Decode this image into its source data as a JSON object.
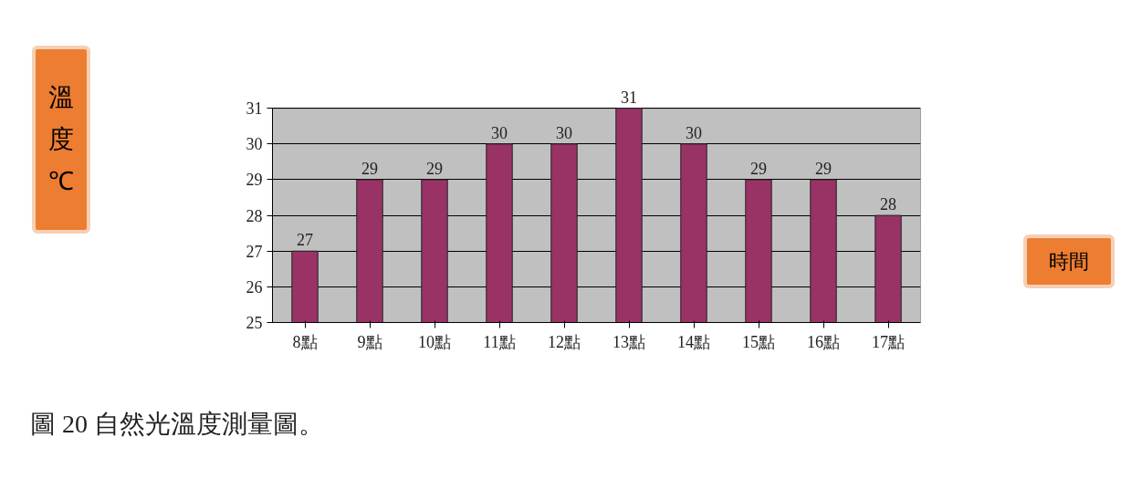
{
  "chart_data": {
    "type": "bar",
    "categories": [
      "8點",
      "9點",
      "10點",
      "11點",
      "12點",
      "13點",
      "14點",
      "15點",
      "16點",
      "17點"
    ],
    "values": [
      27,
      29,
      29,
      30,
      30,
      31,
      30,
      29,
      29,
      28
    ],
    "color": "#993366",
    "ylim": [
      25,
      31
    ],
    "yticks": [
      25,
      26,
      27,
      28,
      29,
      30,
      31
    ],
    "grid": "y",
    "data_labels": true,
    "annotations": [
      "溫度℃",
      "時間",
      "圖 20 自然光溫度測量圖。"
    ]
  }
}
